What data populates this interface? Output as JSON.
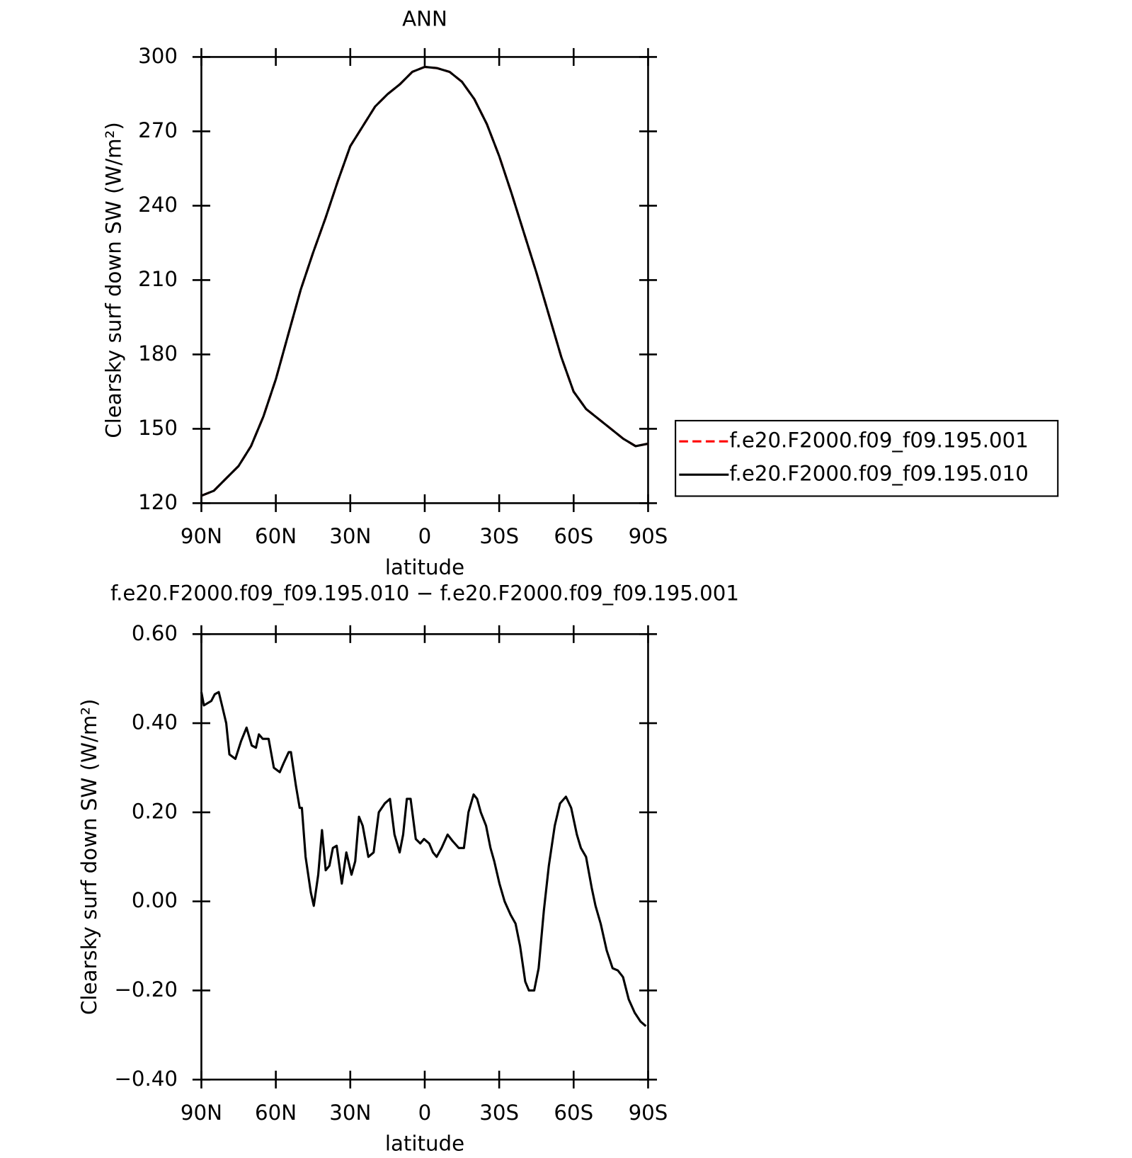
{
  "chart_data": [
    {
      "type": "line",
      "title": "ANN",
      "xlabel": "latitude",
      "ylabel": "Clearsky surf down SW (W/m²)",
      "xlim": [
        90,
        -90
      ],
      "xticks": [
        {
          "value": 90,
          "label": "90N"
        },
        {
          "value": 60,
          "label": "60N"
        },
        {
          "value": 30,
          "label": "30N"
        },
        0,
        {
          "value": -30,
          "label": "30S"
        },
        {
          "value": -60,
          "label": "60S"
        },
        {
          "value": -90,
          "label": "90S"
        }
      ],
      "ylim": [
        120,
        300
      ],
      "yticks": [
        120,
        150,
        180,
        210,
        240,
        270,
        300
      ],
      "legend": "right",
      "x": [
        90,
        85,
        80,
        75,
        70,
        65,
        60,
        55,
        50,
        45,
        40,
        35,
        30,
        25,
        20,
        15,
        10,
        5,
        0,
        -5,
        -10,
        -15,
        -20,
        -25,
        -30,
        -35,
        -40,
        -45,
        -50,
        -55,
        -60,
        -65,
        -70,
        -75,
        -80,
        -85,
        -90
      ],
      "series": [
        {
          "name": "f.e20.F2000.f09_f09.195.001",
          "color": "#ff0000",
          "dash": true,
          "values": [
            123,
            125,
            130,
            135,
            143,
            155,
            170,
            188,
            206,
            221,
            235,
            250,
            264,
            272,
            280,
            285,
            289,
            294,
            296,
            295.5,
            294,
            290,
            283,
            273,
            260,
            245,
            229,
            213,
            196,
            179,
            165,
            158,
            154,
            150,
            146,
            143,
            144
          ]
        },
        {
          "name": "f.e20.F2000.f09_f09.195.010",
          "color": "#000000",
          "dash": false,
          "values": [
            123,
            125,
            130,
            135,
            143,
            155,
            170,
            188,
            206,
            221,
            235,
            250,
            264,
            272,
            280,
            285,
            289,
            294,
            296,
            295.5,
            294,
            290,
            283,
            273,
            260,
            245,
            229,
            213,
            196,
            179,
            165,
            158,
            154,
            150,
            146,
            143,
            144
          ]
        }
      ]
    },
    {
      "type": "line",
      "title": "f.e20.F2000.f09_f09.195.010 − f.e20.F2000.f09_f09.195.001",
      "xlabel": "latitude",
      "ylabel": "Clearsky surf down SW (W/m²)",
      "xlim": [
        90,
        -90
      ],
      "xticks": [
        {
          "value": 90,
          "label": "90N"
        },
        {
          "value": 60,
          "label": "60N"
        },
        {
          "value": 30,
          "label": "30N"
        },
        0,
        {
          "value": -30,
          "label": "30S"
        },
        {
          "value": -60,
          "label": "60S"
        },
        {
          "value": -90,
          "label": "90S"
        }
      ],
      "ylim": [
        -0.4,
        0.6
      ],
      "yticks": [
        {
          "value": -0.4,
          "label": "−0.40"
        },
        {
          "value": -0.2,
          "label": "−0.20"
        },
        {
          "value": 0,
          "label": "0.00"
        },
        {
          "value": 0.2,
          "label": "0.20"
        },
        {
          "value": 0.4,
          "label": "0.40"
        },
        {
          "value": 0.6,
          "label": "0.60"
        }
      ],
      "x": [
        90,
        89,
        86,
        84.6,
        83,
        81.7,
        80,
        78.7,
        76.3,
        74,
        71.8,
        69.7,
        68,
        66.8,
        65.3,
        62.9,
        60.8,
        58.4,
        56.9,
        54.8,
        53.9,
        51.9,
        50.4,
        49.5,
        48,
        45.9,
        44.7,
        42.9,
        41.4,
        39.9,
        38.4,
        37,
        35.5,
        33.4,
        31.6,
        29.5,
        28,
        26.5,
        25,
        22.7,
        20.6,
        18.5,
        16.1,
        14,
        12.2,
        10.1,
        8.7,
        7.2,
        5.7,
        3.6,
        1.8,
        0.3,
        -1.8,
        -3.3,
        -4.8,
        -6.8,
        -9.2,
        -11.3,
        -13.7,
        -15.8,
        -17.6,
        -19.7,
        -21.1,
        -22.6,
        -24.7,
        -26.5,
        -28,
        -30.1,
        -32.2,
        -34.6,
        -36.6,
        -38.4,
        -40.5,
        -42,
        -44.1,
        -45.9,
        -48,
        -50,
        -52.4,
        -54.5,
        -56.9,
        -59,
        -61.3,
        -62.9,
        -65,
        -67.3,
        -68.8,
        -70.9,
        -73.3,
        -75.7,
        -77.8,
        -79.9,
        -82.2,
        -84.6,
        -87,
        -89.1
      ],
      "series": [
        {
          "color": "#000000",
          "dash": false,
          "values": [
            0.47,
            0.44,
            0.45,
            0.465,
            0.47,
            0.44,
            0.4,
            0.33,
            0.32,
            0.36,
            0.39,
            0.35,
            0.345,
            0.375,
            0.365,
            0.365,
            0.3,
            0.29,
            0.31,
            0.335,
            0.335,
            0.26,
            0.21,
            0.21,
            0.1,
            0.02,
            -0.01,
            0.06,
            0.16,
            0.07,
            0.08,
            0.12,
            0.125,
            0.04,
            0.11,
            0.06,
            0.09,
            0.19,
            0.17,
            0.1,
            0.11,
            0.2,
            0.22,
            0.23,
            0.15,
            0.11,
            0.15,
            0.23,
            0.23,
            0.14,
            0.13,
            0.14,
            0.13,
            0.11,
            0.1,
            0.12,
            0.15,
            0.135,
            0.12,
            0.12,
            0.2,
            0.24,
            0.23,
            0.2,
            0.17,
            0.12,
            0.09,
            0.04,
            0.0,
            -0.03,
            -0.05,
            -0.1,
            -0.18,
            -0.2,
            -0.2,
            -0.15,
            -0.02,
            0.08,
            0.17,
            0.22,
            0.235,
            0.21,
            0.15,
            0.12,
            0.1,
            0.03,
            -0.01,
            -0.05,
            -0.11,
            -0.15,
            -0.155,
            -0.17,
            -0.22,
            -0.25,
            -0.27,
            -0.28
          ]
        }
      ]
    }
  ]
}
